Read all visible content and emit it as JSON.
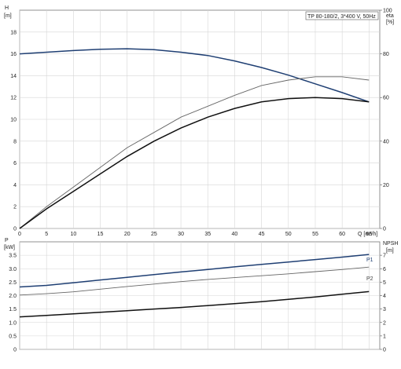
{
  "chart_data": [
    {
      "type": "line",
      "title": "TP 80-180/2, 3*400 V, 50Hz",
      "xlabel": "Q [m³/h]",
      "ylabel_left": "H [m]",
      "ylabel_right": "eta [%]",
      "xlim": [
        0,
        67
      ],
      "ylim_left": [
        0,
        20
      ],
      "ylim_right": [
        0,
        100
      ],
      "x_ticks": [
        "0",
        "5",
        "10",
        "15",
        "20",
        "25",
        "30",
        "35",
        "40",
        "45",
        "50",
        "55",
        "60",
        "65"
      ],
      "y_ticks_left": [
        "0",
        "2",
        "4",
        "6",
        "8",
        "10",
        "12",
        "14",
        "16",
        "18"
      ],
      "y_ticks_right": [
        "0",
        "20",
        "40",
        "60",
        "80",
        "100"
      ],
      "grid": true,
      "series": [
        {
          "axis": "left",
          "color": "#1f3f73",
          "x": [
            0,
            5,
            10,
            15,
            20,
            25,
            30,
            35,
            40,
            45,
            50,
            55,
            60,
            65
          ],
          "values": [
            16.0,
            16.15,
            16.3,
            16.42,
            16.47,
            16.38,
            16.15,
            15.85,
            15.35,
            14.75,
            14.05,
            13.25,
            12.45,
            11.6
          ]
        },
        {
          "axis": "right",
          "color": "#666666",
          "x": [
            0,
            5,
            10,
            15,
            20,
            25,
            30,
            35,
            40,
            45,
            50,
            55,
            60,
            65
          ],
          "values": [
            0,
            10,
            19,
            28,
            37,
            44,
            51,
            56,
            61,
            65.5,
            68,
            69.5,
            69.5,
            68
          ]
        },
        {
          "axis": "right",
          "color": "#111111",
          "x": [
            0,
            5,
            10,
            15,
            20,
            25,
            30,
            35,
            40,
            45,
            50,
            55,
            60,
            65
          ],
          "values": [
            0,
            9,
            17,
            25,
            33,
            40,
            46,
            51,
            55,
            58,
            59.5,
            60,
            59.5,
            58
          ]
        }
      ]
    },
    {
      "type": "line",
      "ylabel_left": "P [kW]",
      "ylabel_right": "NPSH [m]",
      "xlim": [
        0,
        67
      ],
      "ylim_left": [
        0,
        4
      ],
      "ylim_right": [
        0,
        8
      ],
      "y_ticks_left": [
        "0",
        "0.5",
        "1.0",
        "1.5",
        "2.0",
        "2.5",
        "3.0",
        "3.5"
      ],
      "y_ticks_right": [
        "0",
        "1",
        "2",
        "3",
        "4",
        "5",
        "6",
        "7"
      ],
      "grid": true,
      "series": [
        {
          "name": "P1",
          "axis": "left",
          "color": "#1f3f73",
          "x": [
            0,
            5,
            10,
            15,
            20,
            25,
            30,
            35,
            40,
            45,
            50,
            55,
            60,
            65
          ],
          "values": [
            2.32,
            2.38,
            2.48,
            2.58,
            2.68,
            2.78,
            2.88,
            2.97,
            3.07,
            3.16,
            3.25,
            3.34,
            3.43,
            3.53
          ]
        },
        {
          "name": "P2",
          "axis": "left",
          "color": "#666666",
          "x": [
            0,
            5,
            10,
            15,
            20,
            25,
            30,
            35,
            40,
            45,
            50,
            55,
            60,
            65
          ],
          "values": [
            2.02,
            2.07,
            2.14,
            2.24,
            2.34,
            2.43,
            2.52,
            2.6,
            2.67,
            2.74,
            2.81,
            2.89,
            2.97,
            3.06
          ]
        },
        {
          "axis": "right",
          "color": "#111111",
          "x": [
            0,
            5,
            10,
            15,
            20,
            25,
            30,
            35,
            40,
            45,
            50,
            55,
            60,
            65
          ],
          "values": [
            2.42,
            2.53,
            2.64,
            2.76,
            2.88,
            3.0,
            3.12,
            3.26,
            3.4,
            3.55,
            3.72,
            3.9,
            4.1,
            4.3
          ]
        }
      ]
    }
  ]
}
